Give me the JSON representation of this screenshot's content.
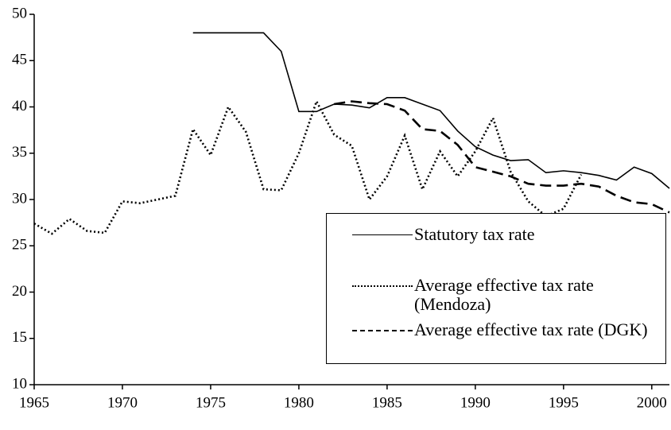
{
  "chart_data": {
    "type": "line",
    "xlim": [
      1965,
      2001
    ],
    "xticks": [
      1965,
      1970,
      1975,
      1980,
      1985,
      1990,
      1995,
      2000
    ],
    "ylim": [
      10,
      50
    ],
    "yticks": [
      10,
      15,
      20,
      25,
      30,
      35,
      40,
      45,
      50
    ],
    "series": [
      {
        "name": "Statutory tax rate",
        "color": "#000000",
        "dash": "solid",
        "x": [
          1974,
          1975,
          1976,
          1977,
          1978,
          1979,
          1980,
          1981,
          1982,
          1983,
          1984,
          1985,
          1986,
          1987,
          1988,
          1989,
          1990,
          1991,
          1992,
          1993,
          1994,
          1995,
          1996,
          1997,
          1998,
          1999,
          2000,
          2001
        ],
        "values": [
          48,
          48,
          48,
          48,
          48,
          46,
          39.5,
          39.5,
          40.3,
          40.2,
          39.9,
          41,
          41,
          40.3,
          39.6,
          37.4,
          35.7,
          34.8,
          34.2,
          34.3,
          32.9,
          33.1,
          32.9,
          32.6,
          32.1,
          33.5,
          32.8,
          31.2
        ]
      },
      {
        "name": "Average effective tax rate (Mendoza)",
        "color": "#000000",
        "dash": "dotted",
        "x": [
          1965,
          1966,
          1967,
          1968,
          1969,
          1970,
          1971,
          1972,
          1973,
          1974,
          1975,
          1976,
          1977,
          1978,
          1979,
          1980,
          1981,
          1982,
          1983,
          1984,
          1985,
          1986,
          1987,
          1988,
          1989,
          1990,
          1991,
          1992,
          1993,
          1994,
          1995,
          1996
        ],
        "values": [
          27.4,
          26.3,
          27.9,
          26.6,
          26.4,
          29.8,
          29.6,
          30.0,
          30.4,
          37.6,
          34.8,
          40.0,
          37.3,
          31.1,
          31.0,
          35.0,
          40.6,
          37.0,
          35.8,
          30.0,
          32.5,
          36.9,
          31.1,
          35.2,
          32.5,
          35.2,
          38.8,
          33.0,
          29.8,
          28.2,
          29.0,
          32.7
        ]
      },
      {
        "name": "Average effective tax rate (DGK)",
        "color": "#000000",
        "dash": "dashed",
        "x": [
          1982,
          1983,
          1984,
          1985,
          1986,
          1987,
          1988,
          1989,
          1990,
          1991,
          1992,
          1993,
          1994,
          1995,
          1996,
          1997,
          1998,
          1999,
          2000,
          2001
        ],
        "values": [
          40.3,
          40.6,
          40.4,
          40.3,
          39.6,
          37.6,
          37.4,
          35.9,
          33.5,
          33.0,
          32.5,
          31.7,
          31.5,
          31.5,
          31.7,
          31.4,
          30.4,
          29.7,
          29.5,
          28.6
        ]
      }
    ]
  }
}
